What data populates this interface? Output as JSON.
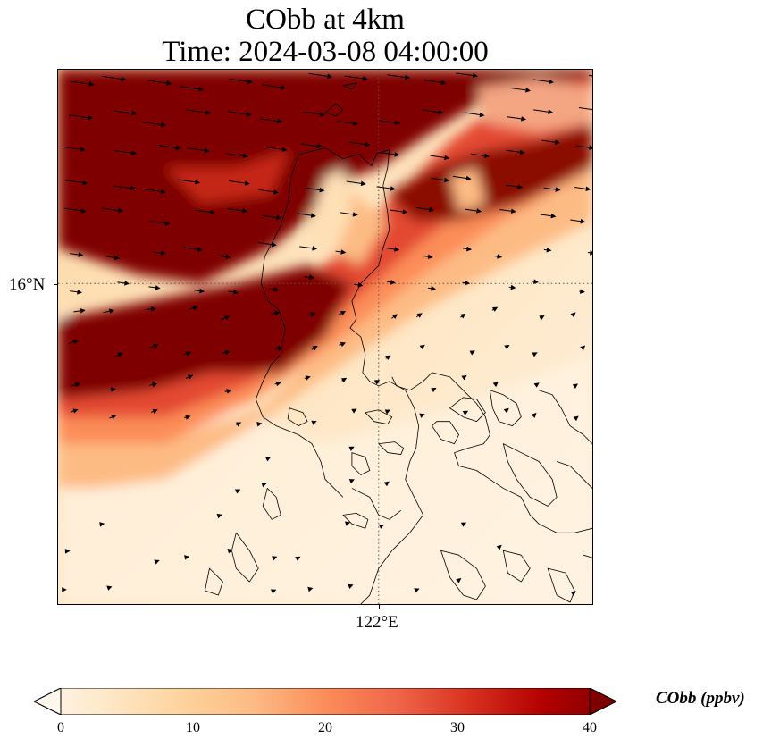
{
  "title": {
    "line1": "CObb at 4km",
    "line2": "Time: 2024-03-08 04:00:00"
  },
  "map": {
    "gridlines": "dotted",
    "lat_labels": [
      "16°N"
    ],
    "lon_labels": [
      "122°E"
    ],
    "variable": "CObb",
    "wind_vectors": "black arrows, blowing mostly east to north-east",
    "colors": {
      "low": "#fff5e6",
      "mid": "#fdcb8a",
      "high": "#d7301f",
      "max": "#7f0000",
      "coast": "#000000"
    }
  },
  "colorbar": {
    "min": 0,
    "max": 40,
    "extend": "both",
    "ticks": [
      "0",
      "10",
      "20",
      "30",
      "40"
    ],
    "label": "CObb (ppbv)",
    "stops": [
      "#fff7ec",
      "#fee8c8",
      "#fdd49e",
      "#fdbb84",
      "#fc8d59",
      "#ef6548",
      "#d7301f",
      "#b30000",
      "#7f0000"
    ]
  }
}
